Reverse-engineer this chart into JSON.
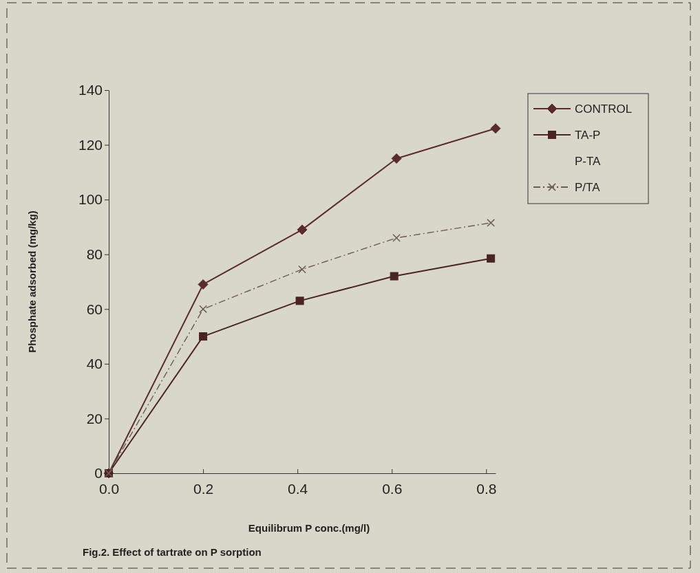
{
  "chart_data": {
    "type": "line",
    "title": "Fig.2. Effect of tartrate on P sorption",
    "xlabel": "Equilibrum P conc.(mg/l)",
    "ylabel": "Phosphate adsorbed (mg/kg)",
    "xlim": [
      0,
      0.82
    ],
    "xticks": [
      {
        "value": 0,
        "label": "0.0"
      },
      {
        "value": 0.2,
        "label": "0.2"
      },
      {
        "value": 0.4,
        "label": "0.4"
      },
      {
        "value": 0.6,
        "label": "0.6"
      },
      {
        "value": 0.8,
        "label": "0.8"
      }
    ],
    "ylim": [
      0,
      140
    ],
    "yticks": [
      0,
      20,
      40,
      60,
      80,
      100,
      120,
      140
    ],
    "grid": false,
    "legend": "top right",
    "series": [
      {
        "name": "CONTROL",
        "color": "#5a2b2b",
        "marker": "diamond",
        "line_style": "solid",
        "x": [
          0,
          0.2,
          0.41,
          0.61,
          0.82
        ],
        "values": [
          0,
          69,
          89,
          115,
          126
        ]
      },
      {
        "name": "TA-P",
        "color": "#4a2424",
        "marker": "square",
        "line_style": "solid",
        "x": [
          0,
          0.2,
          0.405,
          0.605,
          0.81
        ],
        "values": [
          0,
          50,
          63,
          72,
          78.5
        ]
      },
      {
        "name": "P-TA",
        "values": [
          null,
          null,
          null,
          null,
          null
        ]
      },
      {
        "name": "P/TA",
        "color": "#6e5a55",
        "marker": "cross",
        "line_style": "dashed",
        "x": [
          0,
          0.2,
          0.41,
          0.61,
          0.81
        ],
        "values": [
          0,
          60,
          74.5,
          86,
          91.5
        ]
      }
    ]
  }
}
